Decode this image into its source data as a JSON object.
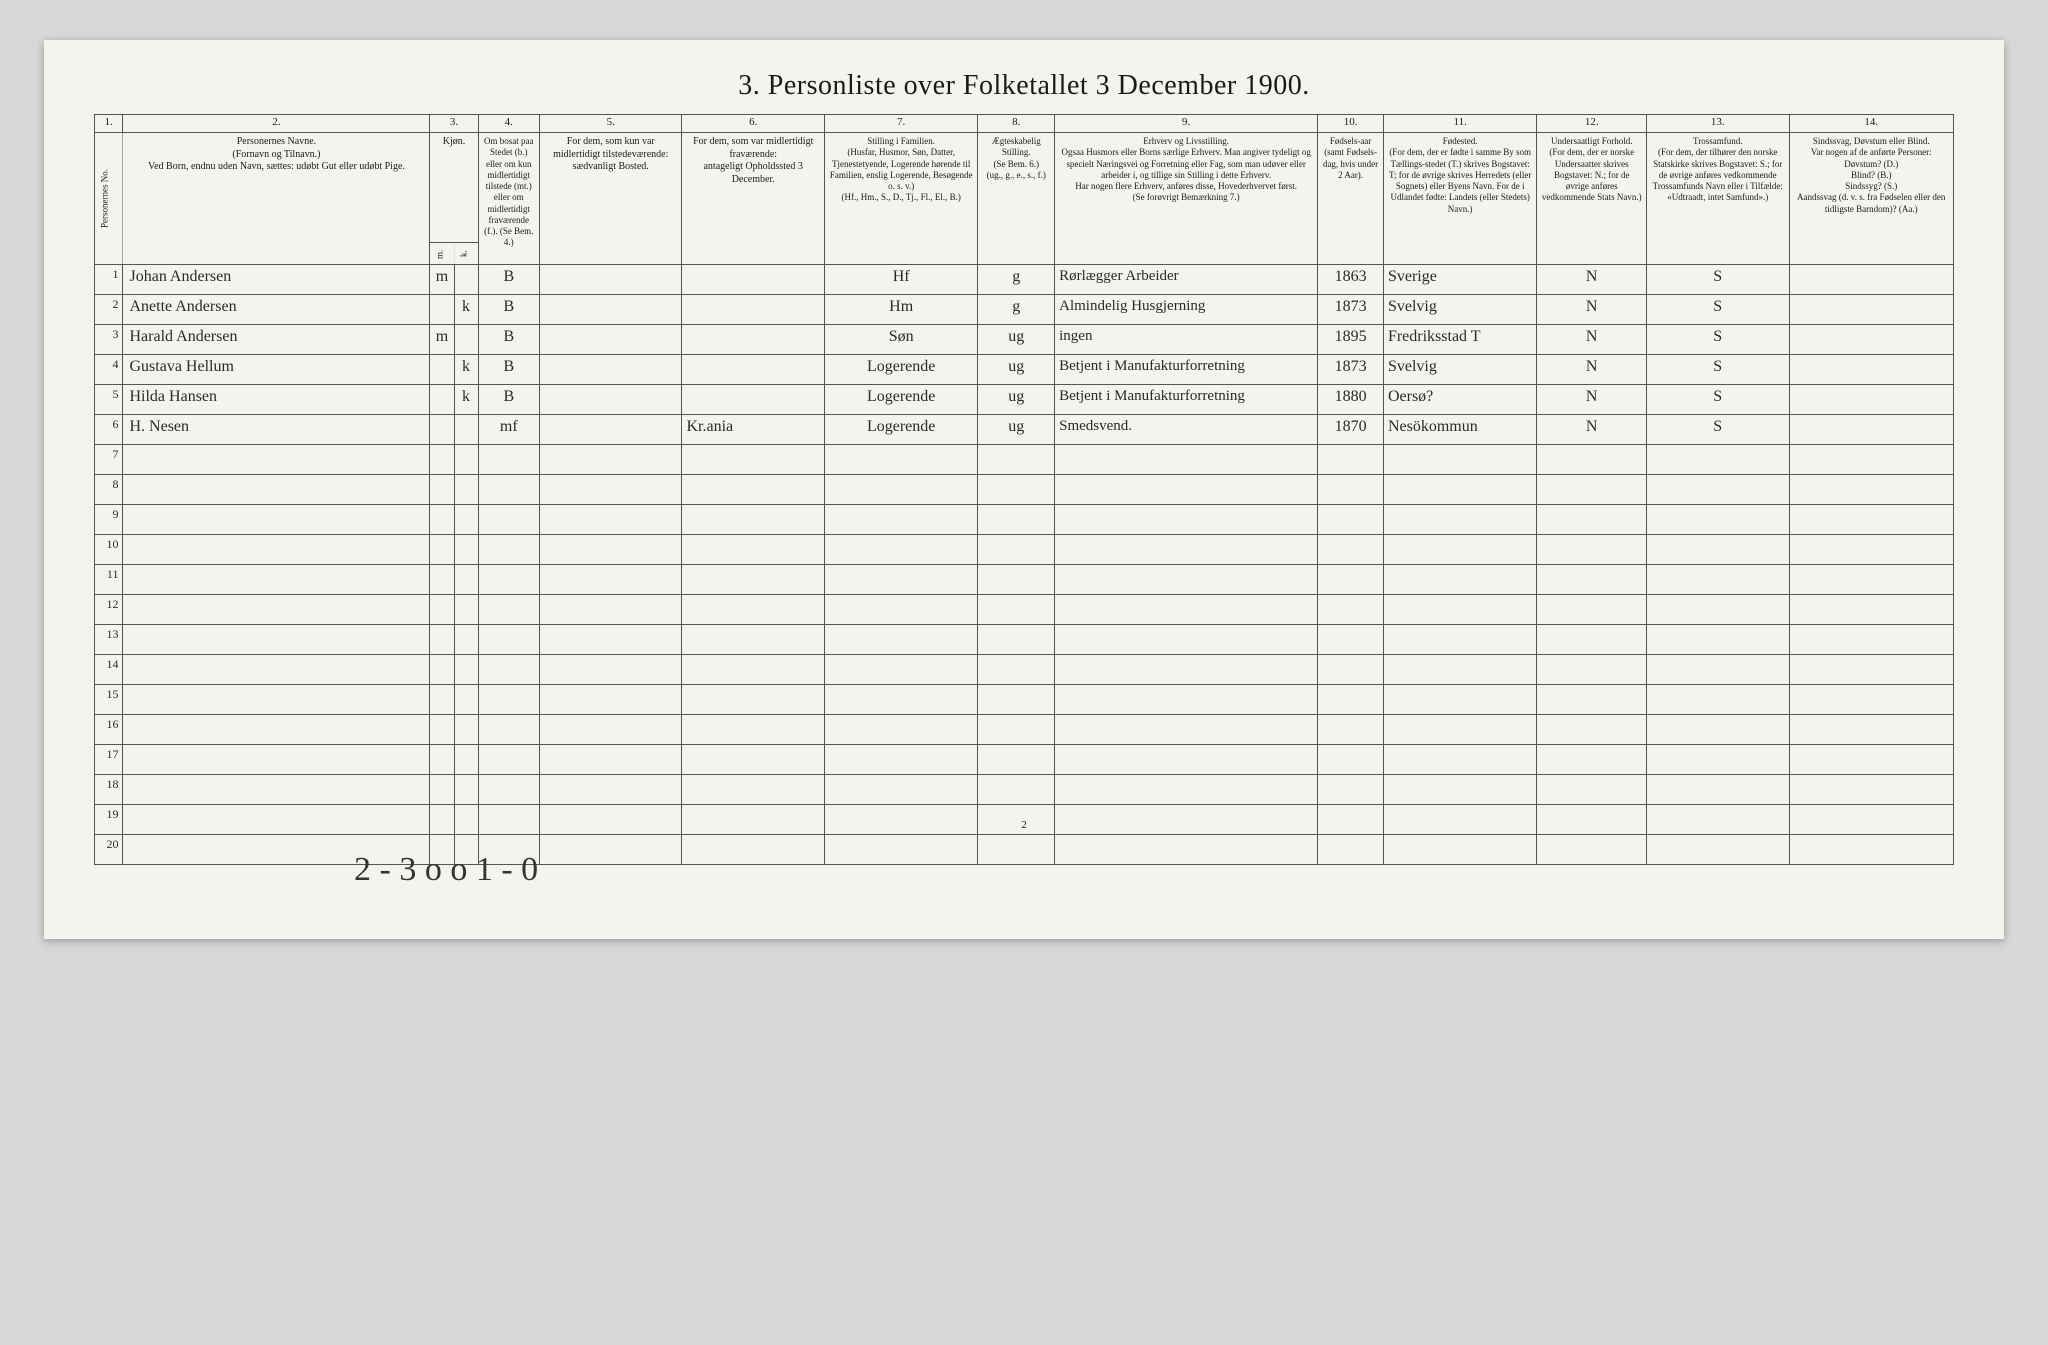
{
  "title": "3. Personliste over Folketallet 3 December 1900.",
  "colnums": [
    "1.",
    "2.",
    "3.",
    "4.",
    "5.",
    "6.",
    "7.",
    "8.",
    "9.",
    "10.",
    "11.",
    "12.",
    "13.",
    "14."
  ],
  "headers": {
    "num": "Personernes No.",
    "name": "Personernes Navne.\n(Fornavn og Tilnavn.)\nVed Born, endnu uden Navn, sættes: udøbt Gut eller udøbt Pige.",
    "sex": "Kjøn.",
    "sex_m": "Mand.",
    "sex_k": "Kvinde.",
    "res": "Om bosat paa Stedet (b.) eller om kun midlertidigt tilstede (mt.) eller om midlertidigt fraværende (f.). (Se Bem. 4.)",
    "temp": "For dem, som kun var midlertidigt tilstedeværende:\nsædvanligt Bosted.",
    "abs": "For dem, som var midlertidigt fraværende:\nantageligt Opholdssted 3 December.",
    "fam": "Stilling i Familien.\n(Husfar, Husmor, Søn, Datter, Tjenestetyende, Logerende hørende til Familien, enslig Logerende, Besøgende o. s. v.)\n(Hf., Hm., S., D., Tj., Fl., El., B.)",
    "civ": "Ægteskabelig Stilling.\n(Se Bem. 6.)\n(ug., g., e., s., f.)",
    "occ": "Erhverv og Livsstilling.\nOgsaa Husmors eller Borns særlige Erhverv. Man angiver tydeligt og specielt Næringsvei og Forretning eller Fag, som man udøver eller arbeider i, og tillige sin Stilling i dette Erhverv.\nHar nogen flere Erhverv, anføres disse, Hovederhvervet først.\n(Se forøvrigt Bemærkning 7.)",
    "year": "Fødsels-aar (samt Fødsels-dag, hvis under 2 Aar).",
    "birth": "Fødested.\n(For dem, der er fødte i samme By som Tællings-stedet (T.) skrives Bogstavet: T; for de øvrige skrives Herredets (eller Sognets) eller Byens Navn. For de i Udlandet fødte: Landets (eller Stedets) Navn.)",
    "nat": "Undersaatligt Forhold.\n(For dem, der er norske Undersaatter skrives Bogstavet: N.; for de øvrige anføres vedkommende Stats Navn.)",
    "rel": "Trossamfund.\n(For dem, der tilhører den norske Statskirke skrives Bogstavet: S.; for de øvrige anføres vedkommende Trossamfunds Navn eller i Tilfælde: «Udtraadt, intet Samfund».)",
    "inf": "Sindssvag, Døvstum eller Blind.\nVar nogen af de anførte Personer:\nDøvstum? (D.)\nBlind? (B.)\nSindssyg? (S.)\nAandssvag (d. v. s. fra Fødselen eller den tidligste Barndom)? (Aa.)"
  },
  "rows": [
    {
      "n": "1",
      "name": "Johan Andersen",
      "m": "m",
      "k": "",
      "res": "B",
      "temp": "",
      "abs": "",
      "fam": "Hf",
      "civ": "g",
      "occ": "Rørlægger Arbeider",
      "year": "1863",
      "birth": "Sverige",
      "nat": "N",
      "rel": "S",
      "inf": ""
    },
    {
      "n": "2",
      "name": "Anette Andersen",
      "m": "",
      "k": "k",
      "res": "B",
      "temp": "",
      "abs": "",
      "fam": "Hm",
      "civ": "g",
      "occ": "Almindelig Husgjerning",
      "year": "1873",
      "birth": "Svelvig",
      "nat": "N",
      "rel": "S",
      "inf": ""
    },
    {
      "n": "3",
      "name": "Harald Andersen",
      "m": "m",
      "k": "",
      "res": "B",
      "temp": "",
      "abs": "",
      "fam": "Søn",
      "civ": "ug",
      "occ": "ingen",
      "year": "1895",
      "birth": "Fredriksstad T",
      "nat": "N",
      "rel": "S",
      "inf": ""
    },
    {
      "n": "4",
      "name": "Gustava Hellum",
      "m": "",
      "k": "k",
      "res": "B",
      "temp": "",
      "abs": "",
      "fam": "Logerende",
      "civ": "ug",
      "occ": "Betjent i Manufakturforretning",
      "year": "1873",
      "birth": "Svelvig",
      "nat": "N",
      "rel": "S",
      "inf": ""
    },
    {
      "n": "5",
      "name": "Hilda Hansen",
      "m": "",
      "k": "k",
      "res": "B",
      "temp": "",
      "abs": "",
      "fam": "Logerende",
      "civ": "ug",
      "occ": "Betjent i Manufakturforretning",
      "year": "1880",
      "birth": "Oersø?",
      "nat": "N",
      "rel": "S",
      "inf": ""
    },
    {
      "n": "6",
      "name": "H. Nesen",
      "m": "",
      "k": "",
      "res": "mf",
      "temp": "",
      "abs": "Kr.ania",
      "fam": "Logerende",
      "civ": "ug",
      "occ": "Smedsvend.",
      "year": "1870",
      "birth": "Nesökommun",
      "nat": "N",
      "rel": "S",
      "inf": ""
    }
  ],
  "empty_rows": [
    "7",
    "8",
    "9",
    "10",
    "11",
    "12",
    "13",
    "14",
    "15",
    "16",
    "17",
    "18",
    "19",
    "20"
  ],
  "footer_note": "2 - 3   o o   1 - 0",
  "page_num": "2"
}
